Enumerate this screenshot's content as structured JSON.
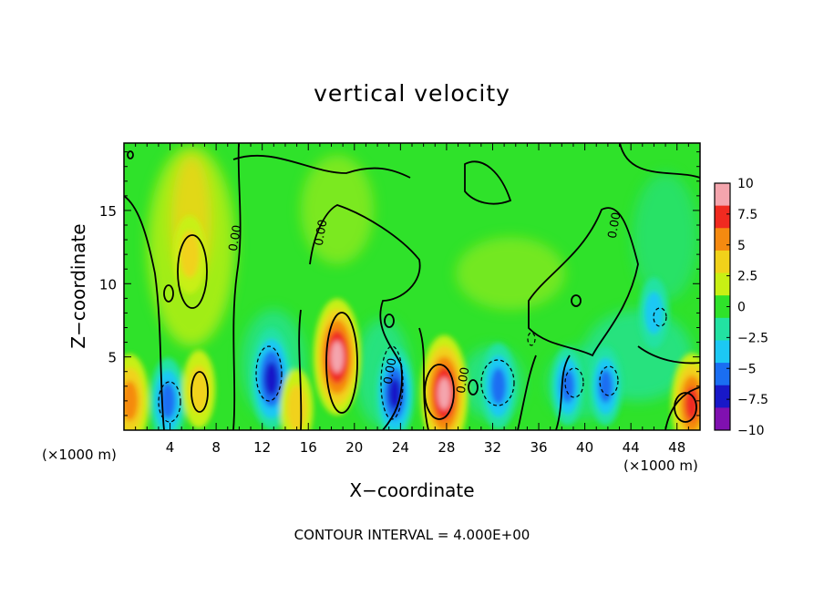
{
  "chart_data": {
    "type": "heatmap",
    "title": "vertical velocity",
    "xlabel": "X−coordinate",
    "ylabel": "Z−coordinate",
    "x_unit_label": "(×1000 m)",
    "xlim": [
      0,
      50
    ],
    "ylim": [
      0,
      19.6
    ],
    "x_ticks": [
      4,
      8,
      12,
      16,
      20,
      24,
      28,
      32,
      36,
      40,
      44,
      48
    ],
    "x_tick_labels": [
      "4",
      "8",
      "12",
      "16",
      "20",
      "24",
      "28",
      "32",
      "36",
      "40",
      "44",
      "48"
    ],
    "y_ticks": [
      5,
      10,
      15
    ],
    "y_tick_labels": [
      "5",
      "10",
      "15"
    ],
    "contour_labels": [
      "0.00",
      "0.00",
      "0.00",
      "0.00"
    ],
    "contour_interval_text": "CONTOUR INTERVAL = 4.000E+00",
    "colorbar": {
      "range": [
        -10,
        10
      ],
      "ticks": [
        10,
        7.5,
        5,
        2.5,
        0,
        -2.5,
        -5,
        -7.5,
        -10
      ],
      "tick_labels": [
        "10",
        "7.5",
        "5",
        "2.5",
        "0",
        "−2.5",
        "−5",
        "−7.5",
        "−10"
      ],
      "colors": [
        "#f4a5ad",
        "#f02a20",
        "#f58a10",
        "#f1d21a",
        "#c8f014",
        "#2fe22a",
        "#22e2a2",
        "#1cc8f4",
        "#1a6ef2",
        "#1818c8",
        "#8010b0"
      ]
    },
    "features": [
      {
        "kind": "updraft",
        "x": 0.5,
        "z": 2,
        "value": 7
      },
      {
        "kind": "downdraft",
        "x": 3.8,
        "z": 2,
        "value": -6
      },
      {
        "kind": "updraft",
        "x": 5.7,
        "z": 12,
        "value": 5
      },
      {
        "kind": "updraft",
        "x": 6.5,
        "z": 2.8,
        "value": 5
      },
      {
        "kind": "downdraft",
        "x": 12.8,
        "z": 3.5,
        "value": -8
      },
      {
        "kind": "updraft",
        "x": 15,
        "z": 1.5,
        "value": 5
      },
      {
        "kind": "updraft",
        "x": 18.5,
        "z": 5,
        "value": 10
      },
      {
        "kind": "downdraft",
        "x": 23.5,
        "z": 2.5,
        "value": -7
      },
      {
        "kind": "updraft",
        "x": 27.8,
        "z": 2.5,
        "value": 10
      },
      {
        "kind": "downdraft",
        "x": 32.5,
        "z": 3,
        "value": -6
      },
      {
        "kind": "downdraft",
        "x": 38.5,
        "z": 3,
        "value": -5
      },
      {
        "kind": "downdraft",
        "x": 41.8,
        "z": 3,
        "value": -5
      },
      {
        "kind": "downdraft",
        "x": 46,
        "z": 8,
        "value": -4
      },
      {
        "kind": "updraft",
        "x": 49.3,
        "z": 1.8,
        "value": 8
      }
    ]
  }
}
